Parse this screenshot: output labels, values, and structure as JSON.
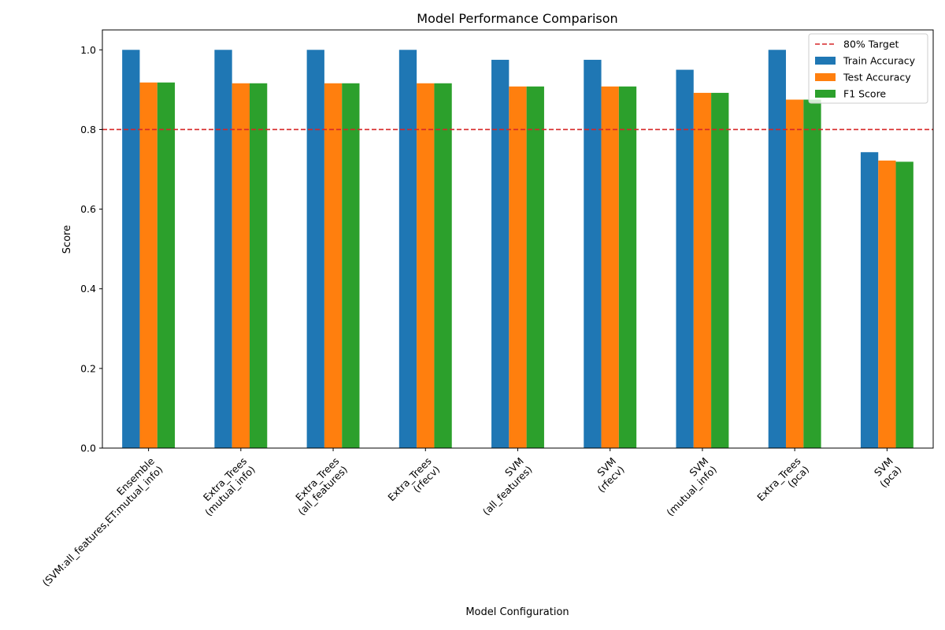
{
  "chart_data": {
    "type": "bar",
    "title": "Model Performance Comparison",
    "xlabel": "Model Configuration",
    "ylabel": "Score",
    "ylim": [
      0,
      1.05
    ],
    "yticks": [
      0.0,
      0.2,
      0.4,
      0.6,
      0.8,
      1.0
    ],
    "ytick_labels": [
      "0.0",
      "0.2",
      "0.4",
      "0.6",
      "0.8",
      "1.0"
    ],
    "grid": false,
    "legend_position": "top-right",
    "categories": [
      [
        "Ensemble",
        "(SVM:all_features,ET:mutual_info)"
      ],
      [
        "Extra_Trees",
        "(mutual_info)"
      ],
      [
        "Extra_Trees",
        "(all_features)"
      ],
      [
        "Extra_Trees",
        "(rfecv)"
      ],
      [
        "SVM",
        "(all_features)"
      ],
      [
        "SVM",
        "(rfecv)"
      ],
      [
        "SVM",
        "(mutual_info)"
      ],
      [
        "Extra_Trees",
        "(pca)"
      ],
      [
        "SVM",
        "(pca)"
      ]
    ],
    "series": [
      {
        "name": "Train Accuracy",
        "color": "#1f77b4",
        "values": [
          1.0,
          1.0,
          1.0,
          1.0,
          0.975,
          0.975,
          0.95,
          1.0,
          0.743
        ]
      },
      {
        "name": "Test Accuracy",
        "color": "#ff7f0e",
        "values": [
          0.918,
          0.916,
          0.916,
          0.916,
          0.908,
          0.908,
          0.892,
          0.875,
          0.722
        ]
      },
      {
        "name": "F1 Score",
        "color": "#2ca02c",
        "values": [
          0.918,
          0.916,
          0.916,
          0.916,
          0.908,
          0.908,
          0.892,
          0.875,
          0.719
        ]
      }
    ],
    "reference_line": {
      "name": "80% Target",
      "value": 0.8,
      "color": "#d62728",
      "style": "dashed"
    }
  }
}
